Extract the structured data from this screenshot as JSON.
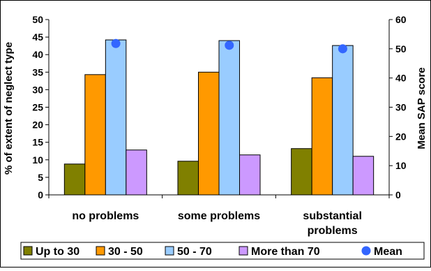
{
  "chart_data": {
    "type": "bar",
    "categories": [
      [
        "no problems"
      ],
      [
        "some problems"
      ],
      [
        "substantial",
        "problems"
      ]
    ],
    "series": [
      {
        "name": "Up to 30",
        "color": "#808000",
        "values": [
          8.8,
          9.6,
          13.2
        ]
      },
      {
        "name": "30 - 50",
        "color": "#ff9900",
        "values": [
          34.3,
          35.0,
          33.4
        ]
      },
      {
        "name": "50 - 70",
        "color": "#99ccff",
        "values": [
          44.2,
          44.0,
          42.6
        ]
      },
      {
        "name": "More than 70",
        "color": "#cc99ff",
        "values": [
          12.8,
          11.4,
          11.0
        ]
      }
    ],
    "mean_series": {
      "name": "Mean",
      "color": "#3366ff",
      "values": [
        51.8,
        51.2,
        50.0
      ]
    },
    "ylabel": "% of extent of neglect type",
    "y2label": "Mean SAP score",
    "ylim": [
      0,
      50
    ],
    "y2lim": [
      0,
      60
    ],
    "yticks": [
      0,
      5,
      10,
      15,
      20,
      25,
      30,
      35,
      40,
      45,
      50
    ],
    "y2ticks": [
      0,
      10,
      20,
      30,
      40,
      50,
      60
    ],
    "grid": false,
    "legend_position": "bottom"
  }
}
